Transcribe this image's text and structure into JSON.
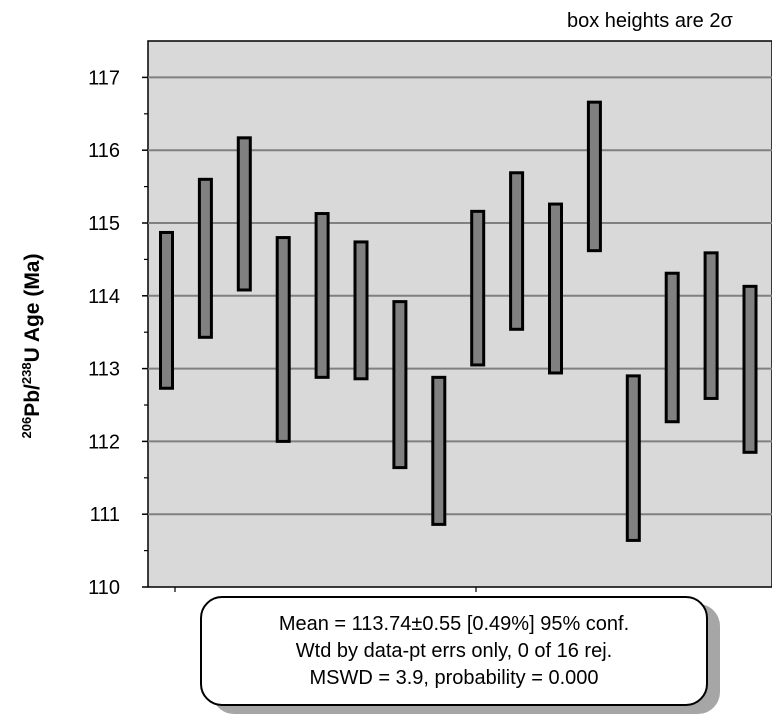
{
  "note": "box heights are 2σ",
  "ylabel": {
    "prefix_sup": "206",
    "mid": "Pb/",
    "mid_sup": "238",
    "suffix": "U Age (Ma)"
  },
  "stats": {
    "line1": "Mean = 113.74±0.55  [0.49%]  95% conf.",
    "line2": "Wtd by data-pt errs only, 0 of 16 rej.",
    "line3": "MSWD = 3.9, probability = 0.000"
  },
  "colors": {
    "plot_bg": "#d9d9d9",
    "box_fill": "#808080",
    "box_stroke": "#000000",
    "grid": "#808080"
  },
  "chart_data": {
    "type": "bar",
    "style": "weighted-mean error boxes",
    "ylim": [
      110,
      117.5
    ],
    "yticks": [
      110,
      111,
      112,
      113,
      114,
      115,
      116,
      117
    ],
    "grid": true,
    "boxes": [
      {
        "low": 112.73,
        "high": 114.87
      },
      {
        "low": 113.43,
        "high": 115.6
      },
      {
        "low": 114.08,
        "high": 116.17
      },
      {
        "low": 112.0,
        "high": 114.8
      },
      {
        "low": 112.88,
        "high": 115.13
      },
      {
        "low": 112.86,
        "high": 114.74
      },
      {
        "low": 111.64,
        "high": 113.92
      },
      {
        "low": 110.86,
        "high": 112.88
      },
      {
        "low": 113.05,
        "high": 115.16
      },
      {
        "low": 113.54,
        "high": 115.69
      },
      {
        "low": 112.94,
        "high": 115.26
      },
      {
        "low": 114.62,
        "high": 116.66
      },
      {
        "low": 110.64,
        "high": 112.9
      },
      {
        "low": 112.27,
        "high": 114.31
      },
      {
        "low": 112.59,
        "high": 114.59
      },
      {
        "low": 111.85,
        "high": 114.13
      }
    ]
  }
}
